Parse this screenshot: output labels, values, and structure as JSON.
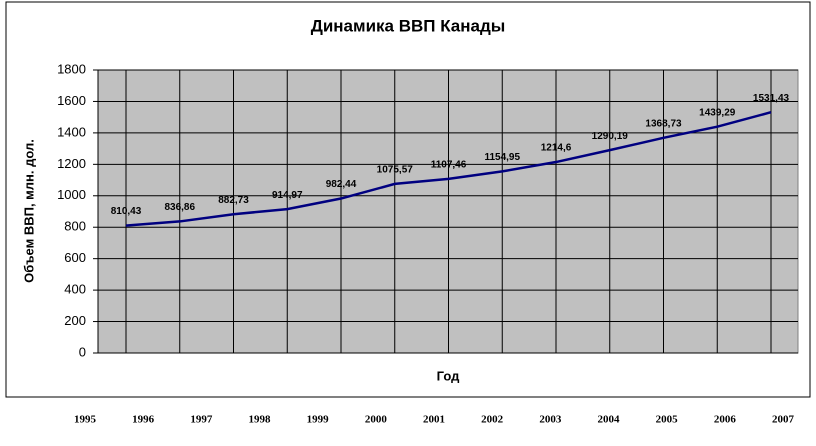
{
  "chart_data": {
    "type": "line",
    "title": "Динамика ВВП Канады",
    "y_axis_label": "Объем ВВП, млн. дол.",
    "x_axis_label": "Год",
    "categories": [
      "1995",
      "1996",
      "1997",
      "1998",
      "1999",
      "2000",
      "2001",
      "2002",
      "2003",
      "2004",
      "2005",
      "2006",
      "2007"
    ],
    "series": [
      {
        "name": "ВВП",
        "color": "#000080",
        "values": [
          810.43,
          836.86,
          882.73,
          914.97,
          982.44,
          1075.57,
          1107.46,
          1154.95,
          1214.6,
          1290.19,
          1368.73,
          1439.29,
          1531.43
        ],
        "value_labels": [
          "810,43",
          "836,86",
          "882,73",
          "914,97",
          "982,44",
          "1075,57",
          "1107,46",
          "1154,95",
          "1214,6",
          "1290,19",
          "1368,73",
          "1439,29",
          "1531,43"
        ]
      }
    ],
    "ylim": [
      0,
      1800
    ],
    "yticks": [
      0,
      200,
      400,
      600,
      800,
      1000,
      1200,
      1400,
      1600,
      1800
    ],
    "grid": true,
    "plot_background": "#c0c0c0"
  }
}
